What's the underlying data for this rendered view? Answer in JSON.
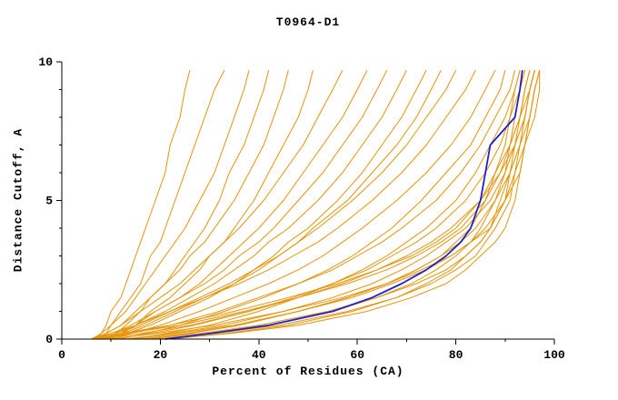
{
  "chart_data": {
    "type": "line",
    "title": "T0964-D1",
    "xlabel": "Percent of Residues (CA)",
    "ylabel": "Distance Cutoff, A",
    "xlim": [
      0,
      100
    ],
    "ylim": [
      0,
      10
    ],
    "x_ticks": [
      0,
      20,
      40,
      60,
      80,
      100
    ],
    "x_minor_ticks": [
      10,
      30,
      50,
      70,
      90
    ],
    "y_ticks": [
      0,
      5,
      10
    ],
    "y_minor_ticks": [
      1,
      2,
      3,
      4,
      6,
      7,
      8,
      9
    ],
    "grid": false,
    "legend": "none",
    "colors": {
      "models": "#e6940a",
      "highlight": "#2121cc",
      "axis": "#000000",
      "background": "#ffffff"
    },
    "y_grid": [
      0,
      0.2,
      0.5,
      1,
      1.5,
      2,
      2.5,
      3,
      3.5,
      4,
      5,
      6,
      7,
      8,
      9,
      9.7
    ],
    "series": [
      {
        "x": [
          7,
          8,
          9,
          10,
          12,
          13,
          14,
          15,
          16,
          17,
          19,
          21,
          22,
          24,
          25,
          26
        ]
      },
      {
        "x": [
          8,
          9,
          10,
          12,
          14,
          16,
          17,
          18,
          20,
          21,
          23,
          25,
          27,
          29,
          31,
          33
        ]
      },
      {
        "x": [
          6,
          8,
          10,
          13,
          15,
          17,
          19,
          21,
          23,
          25,
          28,
          31,
          33,
          35,
          37,
          38
        ]
      },
      {
        "x": [
          9,
          11,
          13,
          16,
          18,
          21,
          23,
          25,
          27,
          29,
          32,
          34,
          37,
          39,
          41,
          42
        ]
      },
      {
        "x": [
          7,
          9,
          12,
          15,
          18,
          21,
          24,
          26,
          29,
          31,
          35,
          38,
          41,
          43,
          45,
          46
        ]
      },
      {
        "x": [
          10,
          12,
          15,
          18,
          22,
          25,
          28,
          30,
          33,
          35,
          39,
          42,
          45,
          48,
          50,
          51
        ]
      },
      {
        "x": [
          6,
          9,
          12,
          16,
          20,
          24,
          27,
          30,
          33,
          36,
          41,
          45,
          49,
          52,
          55,
          57
        ]
      },
      {
        "x": [
          8,
          11,
          15,
          19,
          24,
          28,
          31,
          34,
          37,
          40,
          45,
          49,
          53,
          57,
          60,
          62
        ]
      },
      {
        "x": [
          7,
          10,
          14,
          19,
          24,
          29,
          33,
          36,
          40,
          43,
          48,
          53,
          57,
          61,
          64,
          66
        ]
      },
      {
        "x": [
          6,
          10,
          15,
          21,
          26,
          31,
          35,
          39,
          42,
          46,
          52,
          57,
          61,
          65,
          68,
          70
        ]
      },
      {
        "x": [
          9,
          13,
          18,
          24,
          30,
          35,
          39,
          43,
          46,
          50,
          56,
          61,
          65,
          69,
          72,
          74
        ]
      },
      {
        "x": [
          8,
          12,
          17,
          23,
          29,
          35,
          40,
          44,
          48,
          51,
          58,
          63,
          68,
          72,
          75,
          77
        ]
      },
      {
        "x": [
          7,
          11,
          16,
          22,
          28,
          34,
          39,
          44,
          48,
          52,
          59,
          65,
          70,
          74,
          78,
          80
        ]
      },
      {
        "x": [
          6,
          10,
          15,
          22,
          29,
          36,
          42,
          47,
          52,
          56,
          63,
          69,
          74,
          78,
          82,
          84
        ]
      },
      {
        "x": [
          10,
          14,
          20,
          28,
          35,
          42,
          48,
          53,
          57,
          61,
          68,
          74,
          79,
          83,
          86,
          88
        ]
      },
      {
        "x": [
          12,
          17,
          24,
          33,
          41,
          48,
          54,
          59,
          63,
          67,
          73,
          78,
          83,
          86,
          89,
          90
        ]
      },
      {
        "x": [
          8,
          14,
          22,
          32,
          40,
          48,
          55,
          60,
          65,
          69,
          76,
          81,
          85,
          88,
          91,
          92
        ]
      },
      {
        "x": [
          15,
          21,
          30,
          40,
          48,
          55,
          61,
          66,
          70,
          74,
          80,
          84,
          87,
          90,
          92,
          93
        ]
      },
      {
        "x": [
          11,
          18,
          27,
          38,
          47,
          55,
          62,
          67,
          72,
          76,
          82,
          86,
          89,
          91,
          93,
          94
        ]
      },
      {
        "x": [
          9,
          16,
          26,
          38,
          48,
          57,
          64,
          70,
          75,
          79,
          85,
          88,
          91,
          93,
          94,
          95
        ]
      },
      {
        "x": [
          13,
          22,
          33,
          45,
          55,
          63,
          69,
          74,
          78,
          82,
          87,
          90,
          92,
          94,
          95,
          96
        ]
      },
      {
        "x": [
          7,
          13,
          24,
          37,
          48,
          58,
          66,
          72,
          77,
          81,
          86,
          89,
          92,
          94,
          95,
          96
        ]
      },
      {
        "x": [
          16,
          25,
          36,
          48,
          58,
          66,
          72,
          77,
          81,
          84,
          88,
          91,
          93,
          95,
          96,
          97
        ]
      },
      {
        "x": [
          6,
          12,
          22,
          35,
          46,
          56,
          64,
          71,
          76,
          80,
          85,
          89,
          91,
          93,
          95,
          96
        ]
      },
      {
        "x": [
          14,
          23,
          35,
          48,
          59,
          67,
          74,
          79,
          83,
          86,
          90,
          92,
          94,
          95,
          96,
          97
        ]
      },
      {
        "x": [
          10,
          19,
          31,
          45,
          57,
          66,
          73,
          79,
          83,
          87,
          90,
          93,
          94,
          96,
          97,
          97
        ]
      },
      {
        "x": [
          18,
          26,
          36,
          48,
          58,
          66,
          72,
          77,
          80,
          83,
          86,
          88,
          90,
          91,
          92,
          93
        ]
      },
      {
        "x": [
          20,
          30,
          42,
          55,
          64,
          71,
          76,
          80,
          83,
          85,
          88,
          90,
          91,
          92,
          93,
          94
        ]
      },
      {
        "x": [
          22,
          33,
          46,
          59,
          68,
          74,
          79,
          82,
          85,
          87,
          89,
          91,
          92,
          93,
          94,
          95
        ]
      },
      {
        "x": [
          17,
          28,
          40,
          54,
          64,
          72,
          78,
          82,
          85,
          87,
          90,
          91,
          93,
          94,
          95,
          96
        ]
      },
      {
        "x": [
          19,
          31,
          44,
          58,
          68,
          75,
          80,
          84,
          86,
          88,
          91,
          92,
          93,
          94,
          95,
          96
        ]
      },
      {
        "x": [
          21,
          34,
          48,
          62,
          71,
          78,
          82,
          85,
          88,
          90,
          92,
          93,
          94,
          95,
          96,
          97
        ]
      }
    ],
    "highlight": {
      "x": [
        21,
        30,
        42,
        55,
        63,
        69,
        74,
        78,
        81,
        83,
        85,
        86,
        87,
        92,
        93,
        93.5
      ]
    }
  }
}
